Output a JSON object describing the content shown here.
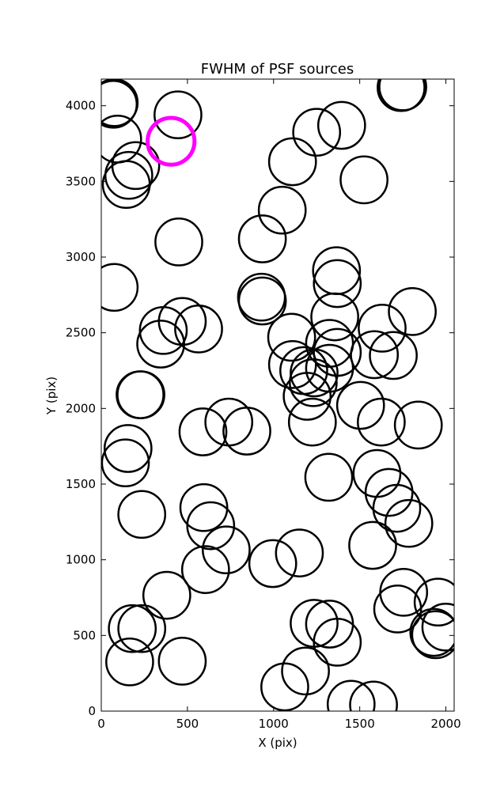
{
  "chart_data": {
    "type": "scatter",
    "title": "FWHM of PSF sources",
    "xlabel": "X (pix)",
    "ylabel": "Y (pix)",
    "xlim": [
      0,
      2048
    ],
    "ylim": [
      0,
      4176
    ],
    "xticks": [
      0,
      500,
      1000,
      1500,
      2000
    ],
    "yticks": [
      0,
      500,
      1000,
      1500,
      2000,
      2500,
      3000,
      3500,
      4000
    ],
    "grid": false,
    "marker": "open-circle",
    "marker_radius": 136,
    "colors": {
      "source": "#000000",
      "highlight": "#ff00ff"
    },
    "highlight": {
      "x": 405,
      "y": 3765
    },
    "series": [
      {
        "x": [
          75,
          70,
          445,
          200,
          160,
          145,
          450,
          75,
          95,
          230,
          345,
          565,
          470,
          360,
          225,
          155,
          140,
          590,
          740,
          845,
          595,
          635,
          725,
          235,
          180,
          470,
          605,
          380,
          235,
          165,
          1250,
          1395,
          1110,
          1050,
          1525,
          935,
          1750,
          1365,
          1370,
          1355,
          935,
          930,
          1105,
          1325,
          1370,
          1505,
          1235,
          1110,
          1175,
          1230,
          1325,
          1195,
          1225,
          1585,
          1630,
          1695,
          1805,
          1625,
          1840,
          1320,
          1600,
          1670,
          1715,
          1785,
          1575,
          995,
          1150,
          1755,
          1720,
          1955,
          2000,
          1930,
          1940,
          1235,
          1325,
          1370,
          1185,
          1065,
          1450,
          1580,
          1740
        ],
        "y": [
          4020,
          4010,
          3940,
          3605,
          3540,
          3480,
          3100,
          2800,
          3780,
          2090,
          2425,
          2525,
          2575,
          2515,
          2090,
          1735,
          1640,
          1845,
          1910,
          1850,
          1345,
          1225,
          1065,
          1300,
          545,
          330,
          935,
          765,
          545,
          325,
          3825,
          3870,
          3630,
          3310,
          3510,
          3120,
          4125,
          2910,
          2825,
          2605,
          2710,
          2735,
          2470,
          2430,
          2370,
          2020,
          2235,
          2290,
          2250,
          2170,
          2265,
          2080,
          1910,
          2355,
          2530,
          2350,
          2640,
          1910,
          1890,
          1545,
          1570,
          1445,
          1340,
          1240,
          1095,
          975,
          1045,
          785,
          675,
          720,
          555,
          520,
          505,
          580,
          575,
          455,
          265,
          160,
          45,
          40,
          4120
        ]
      }
    ]
  }
}
